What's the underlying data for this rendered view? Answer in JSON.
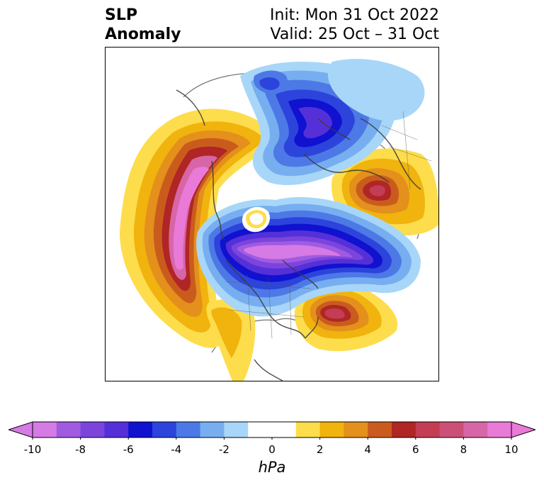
{
  "title": {
    "left_line1": "SLP",
    "left_line2": "Anomaly",
    "right_line1": "Init: Mon 31 Oct 2022",
    "right_line2": "Valid: 25 Oct – 31 Oct"
  },
  "colorbar": {
    "unit": "hPa",
    "ticks": [
      "-10",
      "-8",
      "-6",
      "-4",
      "-2",
      "0",
      "2",
      "4",
      "6",
      "8",
      "10"
    ],
    "bins": [
      "#d67ae6",
      "#a05be0",
      "#7b45dd",
      "#5530d8",
      "#1111d0",
      "#2c44dc",
      "#4d79e6",
      "#77aef0",
      "#a8d6f8",
      "#ffffff",
      "#ffffff",
      "#fddd4c",
      "#f1b30e",
      "#e4901c",
      "#c95c1d",
      "#b02525",
      "#c33d55",
      "#cc4f77",
      "#d766a7",
      "#e97ad8"
    ],
    "extend_low": "#d67ae6",
    "extend_high": "#e97ad8"
  },
  "map": {
    "projection": "polar stereographic, north pole",
    "field": "sea level pressure anomaly",
    "features": [
      {
        "type": "positive",
        "region": "Gulf of Alaska / NE Pacific",
        "peak_hPa": 10
      },
      {
        "type": "positive",
        "region": "western Russia",
        "peak_hPa": 6
      },
      {
        "type": "positive",
        "region": "North Atlantic off Newfoundland",
        "peak_hPa": 6
      },
      {
        "type": "negative",
        "region": "Arctic / northern Canada",
        "peak_hPa": -10
      },
      {
        "type": "negative",
        "region": "East Siberian Sea",
        "peak_hPa": -6
      }
    ]
  }
}
